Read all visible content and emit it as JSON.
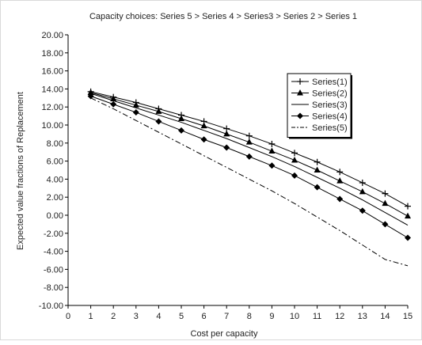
{
  "chart_data": {
    "type": "line",
    "title": "Capacity choices: Series 5 > Series 4 > Series3 > Series 2 > Series 1",
    "xlabel": "Cost per capacity",
    "ylabel": "Expected value fractions of Replacement",
    "xlim": [
      0,
      15
    ],
    "ylim": [
      -10,
      20
    ],
    "x_ticks": [
      0,
      1,
      2,
      3,
      4,
      5,
      6,
      7,
      8,
      9,
      10,
      11,
      12,
      13,
      14,
      15
    ],
    "y_ticks": [
      -10,
      -8,
      -6,
      -4,
      -2,
      0,
      2,
      4,
      6,
      8,
      10,
      12,
      14,
      16,
      18,
      20
    ],
    "x_tick_labels": [
      "0",
      "1",
      "2",
      "3",
      "4",
      "5",
      "6",
      "7",
      "8",
      "9",
      "10",
      "11",
      "12",
      "13",
      "14",
      "15"
    ],
    "y_tick_labels": [
      "-10.00",
      "-8.00",
      "-6.00",
      "-4.00",
      "-2.00",
      "0.00",
      "2.00",
      "4.00",
      "6.00",
      "8.00",
      "10.00",
      "12.00",
      "14.00",
      "16.00",
      "18.00",
      "20.00"
    ],
    "grid": false,
    "legend_position": "top-right",
    "x": [
      1,
      2,
      3,
      4,
      5,
      6,
      7,
      8,
      9,
      10,
      11,
      12,
      13,
      14,
      15
    ],
    "series": [
      {
        "name": "Series(1)",
        "marker": "plus",
        "dash": "solid",
        "values": [
          13.7,
          13.1,
          12.5,
          11.8,
          11.1,
          10.4,
          9.6,
          8.8,
          7.9,
          6.9,
          5.9,
          4.8,
          3.6,
          2.4,
          1.0
        ]
      },
      {
        "name": "Series(2)",
        "marker": "triangle",
        "dash": "solid",
        "values": [
          13.6,
          12.9,
          12.2,
          11.5,
          10.7,
          9.9,
          9.0,
          8.1,
          7.1,
          6.1,
          5.0,
          3.8,
          2.6,
          1.3,
          -0.1
        ]
      },
      {
        "name": "Series(3)",
        "marker": "none",
        "dash": "solid",
        "values": [
          13.5,
          12.7,
          11.9,
          11.1,
          10.3,
          9.4,
          8.5,
          7.5,
          6.5,
          5.4,
          4.2,
          3.0,
          1.7,
          0.3,
          -1.1
        ]
      },
      {
        "name": "Series(4)",
        "marker": "diamond",
        "dash": "solid",
        "values": [
          13.2,
          12.3,
          11.4,
          10.4,
          9.4,
          8.4,
          7.5,
          6.5,
          5.5,
          4.4,
          3.1,
          1.8,
          0.5,
          -1.0,
          -2.5
        ]
      },
      {
        "name": "Series(5)",
        "marker": "none",
        "dash": "dashdot",
        "values": [
          13.0,
          11.8,
          10.5,
          9.2,
          7.9,
          6.6,
          5.3,
          4.0,
          2.7,
          1.3,
          -0.2,
          -1.7,
          -3.3,
          -4.9,
          -5.6
        ]
      }
    ]
  }
}
